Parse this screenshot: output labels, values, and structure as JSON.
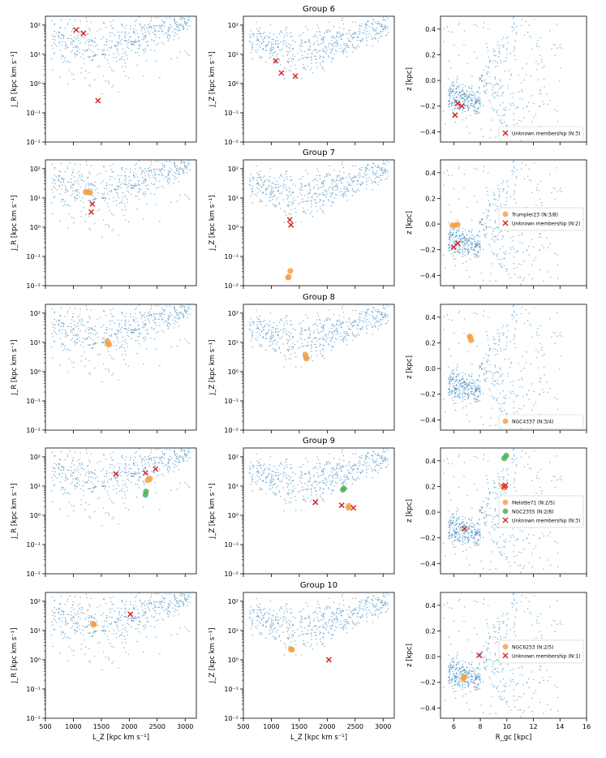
{
  "figure": {
    "type": "scatter-grid",
    "columns": [
      "J_R vs L_Z",
      "J_Z vs L_Z",
      "z vs R_gc"
    ]
  },
  "colors": {
    "background": "#1f77b4",
    "cluster_orange": "#f5a04a",
    "cluster_green": "#4bb35a",
    "unknown": "#d62728"
  },
  "axes_text": {
    "jr_label": "J_R [kpc km s⁻¹]",
    "jz_label": "J_Z [kpc km s⁻¹]",
    "z_label": "z [kpc]",
    "lz_label": "L_Z [kpc km s⁻¹]",
    "rgc_label": "R_gc [kpc]",
    "log_ticks": [
      "10⁻²",
      "10⁻¹",
      "10⁰",
      "10¹",
      "10²"
    ],
    "lz_ticks": [
      "500",
      "1000",
      "1500",
      "2000",
      "2500",
      "3000"
    ],
    "rgc_ticks": [
      "6",
      "8",
      "10",
      "12",
      "14",
      "16"
    ],
    "z_ticks": [
      "−0.4",
      "−0.2",
      "0.0",
      "0.2",
      "0.4"
    ]
  },
  "chart_data": [
    {
      "type": "scatter",
      "title": "Group 6",
      "jr": {
        "xlim": [
          500,
          3200
        ],
        "ylim": [
          0.01,
          200
        ],
        "unknown": [
          [
            1050,
            68
          ],
          [
            1180,
            52
          ],
          [
            1440,
            0.26
          ]
        ],
        "orange": [],
        "green": []
      },
      "jz": {
        "xlim": [
          500,
          3200
        ],
        "ylim": [
          0.01,
          200
        ],
        "unknown": [
          [
            1080,
            6
          ],
          [
            1180,
            2.3
          ],
          [
            1430,
            1.8
          ]
        ],
        "orange": [],
        "green": []
      },
      "z": {
        "xlim": [
          5,
          16
        ],
        "ylim": [
          -0.48,
          0.5
        ],
        "unknown": [
          [
            6.3,
            -0.18
          ],
          [
            6.6,
            -0.2
          ],
          [
            6.1,
            -0.27
          ]
        ],
        "orange": [],
        "green": []
      },
      "legend": [
        {
          "kind": "unknown",
          "label": "Unknown membership (N:3)"
        }
      ]
    },
    {
      "type": "scatter",
      "title": "Group 7",
      "jr": {
        "xlim": [
          500,
          3200
        ],
        "ylim": [
          0.01,
          200
        ],
        "unknown": [
          [
            1340,
            6.2
          ],
          [
            1320,
            3.3
          ]
        ],
        "orange": [
          [
            1220,
            16
          ],
          [
            1260,
            16
          ],
          [
            1300,
            15
          ]
        ],
        "green": []
      },
      "jz": {
        "xlim": [
          500,
          3200
        ],
        "ylim": [
          0.01,
          200
        ],
        "unknown": [
          [
            1330,
            1.8
          ],
          [
            1350,
            1.2
          ]
        ],
        "orange": [
          [
            1310,
            0.02
          ],
          [
            1340,
            0.032
          ],
          [
            1300,
            0.019
          ]
        ],
        "green": []
      },
      "z": {
        "xlim": [
          5,
          16
        ],
        "ylim": [
          -0.48,
          0.5
        ],
        "unknown": [
          [
            6.3,
            -0.15
          ],
          [
            6.0,
            -0.18
          ]
        ],
        "orange": [
          [
            5.9,
            -0.01
          ],
          [
            6.1,
            -0.01
          ],
          [
            6.3,
            -0.005
          ]
        ],
        "green": []
      },
      "legend": [
        {
          "kind": "orange",
          "label": "Trumpler23 (N:3/8)"
        },
        {
          "kind": "unknown",
          "label": "Unknown membership (N:2)"
        }
      ]
    },
    {
      "type": "scatter",
      "title": "Group 8",
      "jr": {
        "xlim": [
          500,
          3200
        ],
        "ylim": [
          0.01,
          200
        ],
        "unknown": [],
        "orange": [
          [
            1610,
            11
          ],
          [
            1620,
            9
          ],
          [
            1640,
            8.5
          ]
        ],
        "green": []
      },
      "jz": {
        "xlim": [
          500,
          3200
        ],
        "ylim": [
          0.01,
          200
        ],
        "unknown": [],
        "orange": [
          [
            1610,
            3.8
          ],
          [
            1620,
            3.0
          ],
          [
            1630,
            2.8
          ]
        ],
        "green": []
      },
      "z": {
        "xlim": [
          5,
          16
        ],
        "ylim": [
          -0.48,
          0.5
        ],
        "unknown": [],
        "orange": [
          [
            7.2,
            0.25
          ],
          [
            7.25,
            0.24
          ],
          [
            7.3,
            0.22
          ]
        ],
        "green": []
      },
      "legend": [
        {
          "kind": "orange",
          "label": "NGC4337 (N:3/4)"
        }
      ]
    },
    {
      "type": "scatter",
      "title": "Group 9",
      "jr": {
        "xlim": [
          500,
          3200
        ],
        "ylim": [
          0.01,
          200
        ],
        "unknown": [
          [
            1760,
            26
          ],
          [
            2290,
            28
          ],
          [
            2470,
            38
          ]
        ],
        "orange": [
          [
            2330,
            16
          ],
          [
            2370,
            18
          ]
        ],
        "green": [
          [
            2290,
            5
          ],
          [
            2300,
            6.5
          ]
        ]
      },
      "jz": {
        "xlim": [
          500,
          3200
        ],
        "ylim": [
          0.01,
          200
        ],
        "unknown": [
          [
            1790,
            2.8
          ],
          [
            2260,
            2.2
          ],
          [
            2470,
            1.8
          ]
        ],
        "orange": [
          [
            2380,
            1.8
          ],
          [
            2390,
            2.1
          ]
        ],
        "green": [
          [
            2280,
            7.5
          ],
          [
            2300,
            8.2
          ]
        ]
      },
      "z": {
        "xlim": [
          5,
          16
        ],
        "ylim": [
          -0.48,
          0.5
        ],
        "unknown": [
          [
            6.8,
            -0.13
          ],
          [
            9.8,
            0.2
          ],
          [
            9.9,
            0.21
          ]
        ],
        "orange": [
          [
            9.7,
            0.2
          ],
          [
            9.8,
            0.19
          ]
        ],
        "green": [
          [
            9.8,
            0.42
          ],
          [
            9.95,
            0.44
          ]
        ]
      },
      "legend": [
        {
          "kind": "orange",
          "label": "Melotte71 (N:2/5)"
        },
        {
          "kind": "green",
          "label": "NGC2355 (N:2/8)"
        },
        {
          "kind": "unknown",
          "label": "Unknown membership (N:3)"
        }
      ]
    },
    {
      "type": "scatter",
      "title": "Group 10",
      "jr": {
        "xlim": [
          500,
          3200
        ],
        "ylim": [
          0.01,
          200
        ],
        "unknown": [
          [
            2020,
            36
          ]
        ],
        "orange": [
          [
            1350,
            17
          ],
          [
            1370,
            16
          ]
        ],
        "green": []
      },
      "jz": {
        "xlim": [
          500,
          3200
        ],
        "ylim": [
          0.01,
          200
        ],
        "unknown": [
          [
            2030,
            1.0
          ]
        ],
        "orange": [
          [
            1350,
            2.3
          ],
          [
            1370,
            2.2
          ]
        ],
        "green": []
      },
      "z": {
        "xlim": [
          5,
          16
        ],
        "ylim": [
          -0.48,
          0.5
        ],
        "unknown": [
          [
            7.9,
            0.01
          ]
        ],
        "orange": [
          [
            6.7,
            -0.17
          ],
          [
            6.8,
            -0.16
          ]
        ],
        "green": []
      },
      "legend": [
        {
          "kind": "orange",
          "label": "NGC6253 (N:2/5)"
        },
        {
          "kind": "unknown",
          "label": "Unknown membership (N:1)"
        }
      ]
    }
  ]
}
